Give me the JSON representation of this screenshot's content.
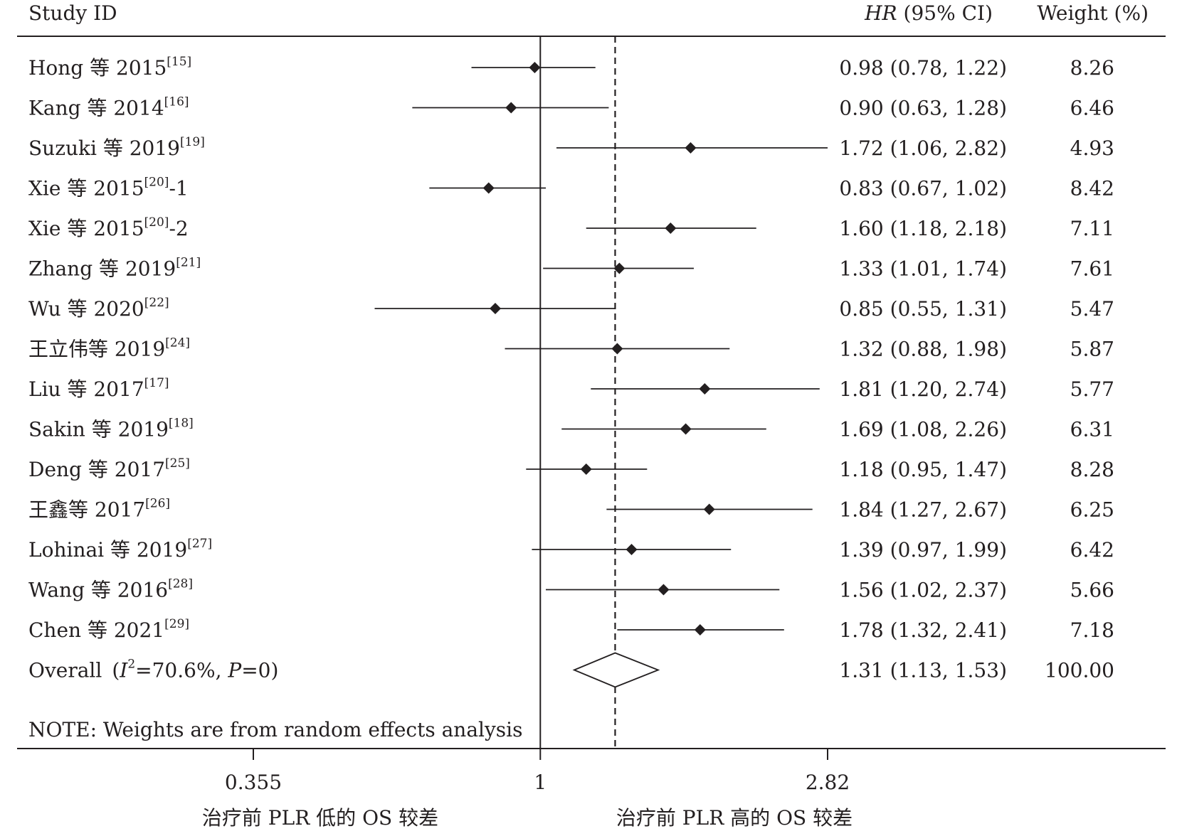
{
  "chart_data": {
    "type": "forest",
    "scale": "log",
    "headers": {
      "study": "Study ID",
      "effect_italic": "HR",
      "effect_rest": " (95% CI)",
      "weight": "Weight (%)"
    },
    "x_ticks": [
      {
        "value": 0.355,
        "label": "0.355"
      },
      {
        "value": 1,
        "label": "1"
      },
      {
        "value": 2.82,
        "label": "2.82"
      }
    ],
    "null_line": 1,
    "xlim": [
      0.355,
      2.82
    ],
    "x_captions": {
      "left": "治疗前 PLR 低的 OS 较差",
      "right": "治疗前 PLR 高的 OS 较差"
    },
    "studies": [
      {
        "name": "Hong 等 2015",
        "ref": "[15]",
        "suffix": "",
        "hr": 0.98,
        "lo": 0.78,
        "hi": 1.22,
        "ci_text": "0.98 (0.78, 1.22)",
        "weight": "8.26"
      },
      {
        "name": "Kang 等 2014",
        "ref": "[16]",
        "suffix": "",
        "hr": 0.9,
        "lo": 0.63,
        "hi": 1.28,
        "ci_text": "0.90 (0.63, 1.28)",
        "weight": "6.46"
      },
      {
        "name": "Suzuki 等 2019",
        "ref": "[19]",
        "suffix": "",
        "hr": 1.72,
        "lo": 1.06,
        "hi": 2.82,
        "ci_text": "1.72 (1.06, 2.82)",
        "weight": "4.93"
      },
      {
        "name": "Xie 等 2015",
        "ref": "[20]",
        "suffix": "-1",
        "hr": 0.83,
        "lo": 0.67,
        "hi": 1.02,
        "ci_text": "0.83 (0.67, 1.02)",
        "weight": "8.42"
      },
      {
        "name": "Xie 等 2015",
        "ref": "[20]",
        "suffix": "-2",
        "hr": 1.6,
        "lo": 1.18,
        "hi": 2.18,
        "ci_text": "1.60 (1.18, 2.18)",
        "weight": "7.11"
      },
      {
        "name": "Zhang 等 2019",
        "ref": "[21]",
        "suffix": "",
        "hr": 1.33,
        "lo": 1.01,
        "hi": 1.74,
        "ci_text": "1.33 (1.01, 1.74)",
        "weight": "7.61"
      },
      {
        "name": "Wu 等 2020",
        "ref": "[22]",
        "suffix": "",
        "hr": 0.85,
        "lo": 0.55,
        "hi": 1.31,
        "ci_text": "0.85 (0.55, 1.31)",
        "weight": "5.47"
      },
      {
        "name": "王立伟等 2019",
        "ref": "[24]",
        "suffix": "",
        "hr": 1.32,
        "lo": 0.88,
        "hi": 1.98,
        "ci_text": "1.32 (0.88, 1.98)",
        "weight": "5.87"
      },
      {
        "name": "Liu 等 2017",
        "ref": "[17]",
        "suffix": "",
        "hr": 1.81,
        "lo": 1.2,
        "hi": 2.74,
        "ci_text": "1.81 (1.20, 2.74)",
        "weight": "5.77"
      },
      {
        "name": "Sakin 等 2019",
        "ref": "[18]",
        "suffix": "",
        "hr": 1.69,
        "lo": 1.08,
        "hi": 2.26,
        "ci_text": "1.69 (1.08, 2.26)",
        "weight": "6.31"
      },
      {
        "name": "Deng 等 2017",
        "ref": "[25]",
        "suffix": "",
        "hr": 1.18,
        "lo": 0.95,
        "hi": 1.47,
        "ci_text": "1.18 (0.95, 1.47)",
        "weight": "8.28"
      },
      {
        "name": "王鑫等 2017",
        "ref": "[26]",
        "suffix": "",
        "hr": 1.84,
        "lo": 1.27,
        "hi": 2.67,
        "ci_text": "1.84 (1.27, 2.67)",
        "weight": "6.25"
      },
      {
        "name": "Lohinai 等 2019",
        "ref": "[27]",
        "suffix": "",
        "hr": 1.39,
        "lo": 0.97,
        "hi": 1.99,
        "ci_text": "1.39 (0.97, 1.99)",
        "weight": "6.42"
      },
      {
        "name": "Wang 等 2016",
        "ref": "[28]",
        "suffix": "",
        "hr": 1.56,
        "lo": 1.02,
        "hi": 2.37,
        "ci_text": "1.56 (1.02, 2.37)",
        "weight": "5.66"
      },
      {
        "name": "Chen 等 2021",
        "ref": "[29]",
        "suffix": "",
        "hr": 1.78,
        "lo": 1.32,
        "hi": 2.41,
        "ci_text": "1.78 (1.32, 2.41)",
        "weight": "7.18"
      }
    ],
    "overall": {
      "label": "Overall",
      "i2_symbol": "I",
      "i2_sup": "2",
      "i2_value": "=70.6%, ",
      "p_symbol": "P",
      "p_value": "=0",
      "hr": 1.31,
      "lo": 1.13,
      "hi": 1.53,
      "ci_text": "1.31 (1.13, 1.53)",
      "weight": "100.00"
    },
    "note": "NOTE: Weights are from random effects analysis"
  }
}
